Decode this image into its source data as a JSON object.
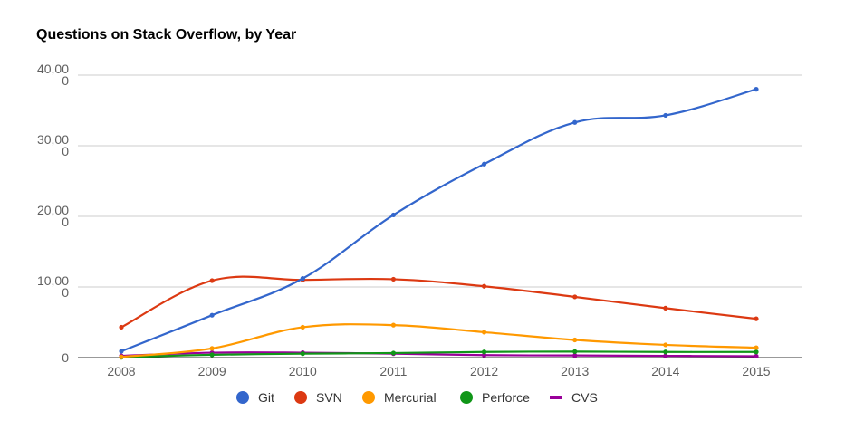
{
  "chart_data": {
    "type": "line",
    "title": "Questions on Stack Overflow, by Year",
    "xlabel": "",
    "ylabel": "",
    "categories": [
      "2008",
      "2009",
      "2010",
      "2011",
      "2012",
      "2013",
      "2014",
      "2015"
    ],
    "y_ticks": [
      {
        "value": 0,
        "lines": [
          "0"
        ]
      },
      {
        "value": 10000,
        "lines": [
          "10,00",
          "0"
        ]
      },
      {
        "value": 20000,
        "lines": [
          "20,00",
          "0"
        ]
      },
      {
        "value": 30000,
        "lines": [
          "30,00",
          "0"
        ]
      },
      {
        "value": 40000,
        "lines": [
          "40,00",
          "0"
        ]
      }
    ],
    "ylim": [
      0,
      40000
    ],
    "grid": true,
    "legend_position": "bottom",
    "series": [
      {
        "name": "Git",
        "color": "#3366cc",
        "values": [
          900,
          6000,
          11200,
          20200,
          27400,
          33300,
          34300,
          38000
        ]
      },
      {
        "name": "SVN",
        "color": "#dc3912",
        "values": [
          4300,
          10900,
          11000,
          11100,
          10100,
          8600,
          7000,
          5500
        ]
      },
      {
        "name": "Mercurial",
        "color": "#ff9900",
        "values": [
          100,
          1300,
          4300,
          4600,
          3600,
          2500,
          1800,
          1400
        ]
      },
      {
        "name": "Perforce",
        "color": "#109618",
        "values": [
          50,
          400,
          550,
          650,
          800,
          850,
          800,
          800
        ]
      },
      {
        "name": "CVS",
        "color": "#990099",
        "values": [
          250,
          700,
          700,
          550,
          350,
          300,
          250,
          200
        ]
      }
    ]
  }
}
